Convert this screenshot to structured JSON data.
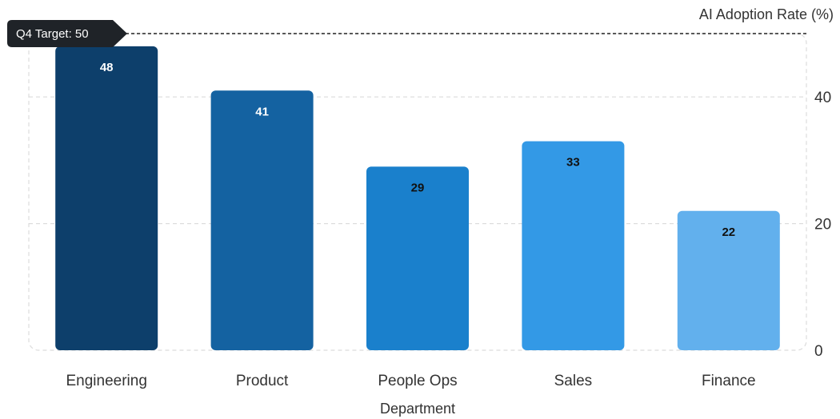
{
  "chart_data": {
    "type": "bar",
    "categories": [
      "Engineering",
      "Product",
      "People Ops",
      "Sales",
      "Finance"
    ],
    "values": [
      48,
      41,
      29,
      33,
      22
    ],
    "bar_colors": [
      "#0d3f6b",
      "#1462a1",
      "#1a80cc",
      "#3399e6",
      "#62b0ed"
    ],
    "label_colors": [
      "#ffffff",
      "#ffffff",
      "#111111",
      "#111111",
      "#111111"
    ],
    "xlabel": "Department",
    "ylabel": "AI Adoption Rate (%)",
    "ylim": [
      0,
      50
    ],
    "yticks": [
      0,
      20,
      40
    ],
    "y_axis_side": "right",
    "grid": true,
    "target": {
      "label": "Q4 Target: 50",
      "value": 50
    }
  }
}
